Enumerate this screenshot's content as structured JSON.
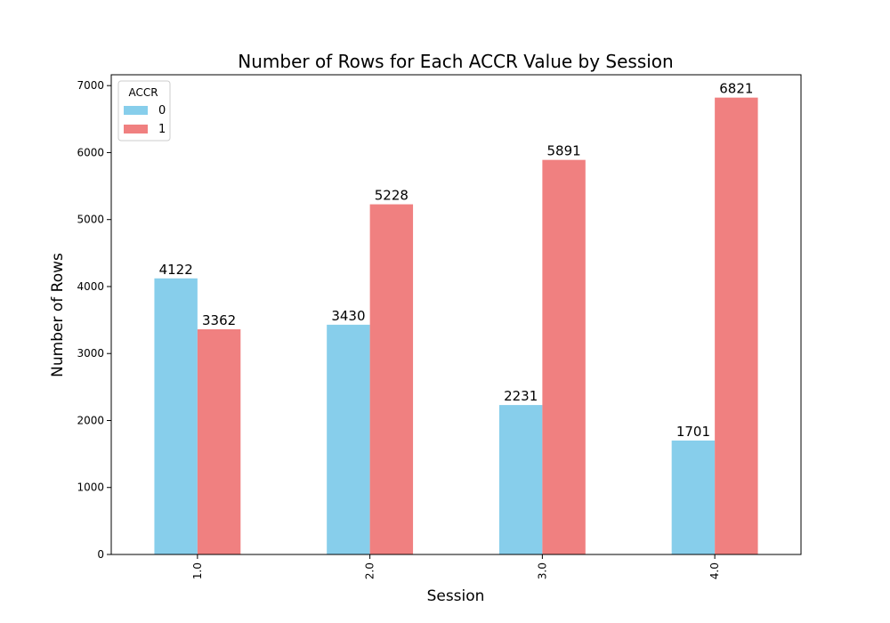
{
  "chart_data": {
    "type": "bar",
    "title": "Number of Rows for Each ACCR Value by Session",
    "xlabel": "Session",
    "ylabel": "Number of Rows",
    "categories": [
      "1.0",
      "2.0",
      "3.0",
      "4.0"
    ],
    "series": [
      {
        "name": "0",
        "color": "#87ceeb",
        "values": [
          4122,
          3430,
          2231,
          1701
        ]
      },
      {
        "name": "1",
        "color": "#f08080",
        "values": [
          3362,
          5228,
          5891,
          6821
        ]
      }
    ],
    "ylim": [
      0,
      7162
    ],
    "yticks": [
      0,
      1000,
      2000,
      3000,
      4000,
      5000,
      6000,
      7000
    ],
    "grid": false,
    "legend": {
      "title": "ACCR",
      "placement": "top-left"
    }
  }
}
